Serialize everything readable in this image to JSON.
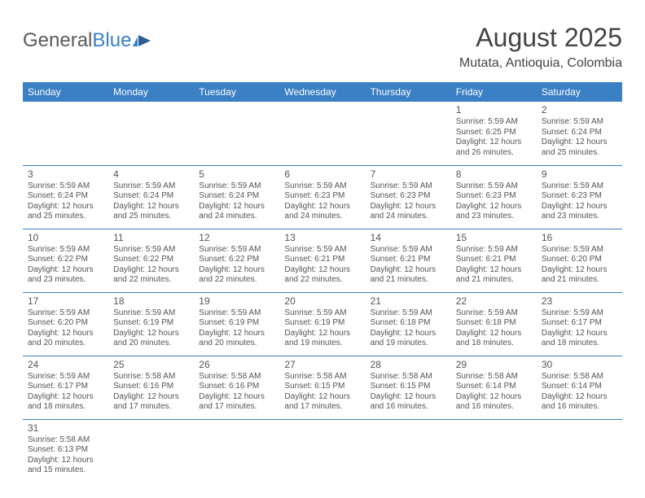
{
  "logo": {
    "general": "General",
    "blue": "Blue"
  },
  "title": "August 2025",
  "subtitle": "Mutata, Antioquia, Colombia",
  "colors": {
    "header_bg": "#3b7fc4",
    "header_text": "#ffffff",
    "cell_border": "#3b7fc4",
    "text": "#555555",
    "title_color": "#444444",
    "background": "#ffffff"
  },
  "typography": {
    "title_fontsize": 32,
    "subtitle_fontsize": 16,
    "header_fontsize": 12,
    "daynum_fontsize": 12,
    "body_fontsize": 10
  },
  "days": [
    "Sunday",
    "Monday",
    "Tuesday",
    "Wednesday",
    "Thursday",
    "Friday",
    "Saturday"
  ],
  "weeks": [
    [
      null,
      null,
      null,
      null,
      null,
      {
        "n": "1",
        "sr": "Sunrise: 5:59 AM",
        "ss": "Sunset: 6:25 PM",
        "d1": "Daylight: 12 hours",
        "d2": "and 26 minutes."
      },
      {
        "n": "2",
        "sr": "Sunrise: 5:59 AM",
        "ss": "Sunset: 6:24 PM",
        "d1": "Daylight: 12 hours",
        "d2": "and 25 minutes."
      }
    ],
    [
      {
        "n": "3",
        "sr": "Sunrise: 5:59 AM",
        "ss": "Sunset: 6:24 PM",
        "d1": "Daylight: 12 hours",
        "d2": "and 25 minutes."
      },
      {
        "n": "4",
        "sr": "Sunrise: 5:59 AM",
        "ss": "Sunset: 6:24 PM",
        "d1": "Daylight: 12 hours",
        "d2": "and 25 minutes."
      },
      {
        "n": "5",
        "sr": "Sunrise: 5:59 AM",
        "ss": "Sunset: 6:24 PM",
        "d1": "Daylight: 12 hours",
        "d2": "and 24 minutes."
      },
      {
        "n": "6",
        "sr": "Sunrise: 5:59 AM",
        "ss": "Sunset: 6:23 PM",
        "d1": "Daylight: 12 hours",
        "d2": "and 24 minutes."
      },
      {
        "n": "7",
        "sr": "Sunrise: 5:59 AM",
        "ss": "Sunset: 6:23 PM",
        "d1": "Daylight: 12 hours",
        "d2": "and 24 minutes."
      },
      {
        "n": "8",
        "sr": "Sunrise: 5:59 AM",
        "ss": "Sunset: 6:23 PM",
        "d1": "Daylight: 12 hours",
        "d2": "and 23 minutes."
      },
      {
        "n": "9",
        "sr": "Sunrise: 5:59 AM",
        "ss": "Sunset: 6:23 PM",
        "d1": "Daylight: 12 hours",
        "d2": "and 23 minutes."
      }
    ],
    [
      {
        "n": "10",
        "sr": "Sunrise: 5:59 AM",
        "ss": "Sunset: 6:22 PM",
        "d1": "Daylight: 12 hours",
        "d2": "and 23 minutes."
      },
      {
        "n": "11",
        "sr": "Sunrise: 5:59 AM",
        "ss": "Sunset: 6:22 PM",
        "d1": "Daylight: 12 hours",
        "d2": "and 22 minutes."
      },
      {
        "n": "12",
        "sr": "Sunrise: 5:59 AM",
        "ss": "Sunset: 6:22 PM",
        "d1": "Daylight: 12 hours",
        "d2": "and 22 minutes."
      },
      {
        "n": "13",
        "sr": "Sunrise: 5:59 AM",
        "ss": "Sunset: 6:21 PM",
        "d1": "Daylight: 12 hours",
        "d2": "and 22 minutes."
      },
      {
        "n": "14",
        "sr": "Sunrise: 5:59 AM",
        "ss": "Sunset: 6:21 PM",
        "d1": "Daylight: 12 hours",
        "d2": "and 21 minutes."
      },
      {
        "n": "15",
        "sr": "Sunrise: 5:59 AM",
        "ss": "Sunset: 6:21 PM",
        "d1": "Daylight: 12 hours",
        "d2": "and 21 minutes."
      },
      {
        "n": "16",
        "sr": "Sunrise: 5:59 AM",
        "ss": "Sunset: 6:20 PM",
        "d1": "Daylight: 12 hours",
        "d2": "and 21 minutes."
      }
    ],
    [
      {
        "n": "17",
        "sr": "Sunrise: 5:59 AM",
        "ss": "Sunset: 6:20 PM",
        "d1": "Daylight: 12 hours",
        "d2": "and 20 minutes."
      },
      {
        "n": "18",
        "sr": "Sunrise: 5:59 AM",
        "ss": "Sunset: 6:19 PM",
        "d1": "Daylight: 12 hours",
        "d2": "and 20 minutes."
      },
      {
        "n": "19",
        "sr": "Sunrise: 5:59 AM",
        "ss": "Sunset: 6:19 PM",
        "d1": "Daylight: 12 hours",
        "d2": "and 20 minutes."
      },
      {
        "n": "20",
        "sr": "Sunrise: 5:59 AM",
        "ss": "Sunset: 6:19 PM",
        "d1": "Daylight: 12 hours",
        "d2": "and 19 minutes."
      },
      {
        "n": "21",
        "sr": "Sunrise: 5:59 AM",
        "ss": "Sunset: 6:18 PM",
        "d1": "Daylight: 12 hours",
        "d2": "and 19 minutes."
      },
      {
        "n": "22",
        "sr": "Sunrise: 5:59 AM",
        "ss": "Sunset: 6:18 PM",
        "d1": "Daylight: 12 hours",
        "d2": "and 18 minutes."
      },
      {
        "n": "23",
        "sr": "Sunrise: 5:59 AM",
        "ss": "Sunset: 6:17 PM",
        "d1": "Daylight: 12 hours",
        "d2": "and 18 minutes."
      }
    ],
    [
      {
        "n": "24",
        "sr": "Sunrise: 5:59 AM",
        "ss": "Sunset: 6:17 PM",
        "d1": "Daylight: 12 hours",
        "d2": "and 18 minutes."
      },
      {
        "n": "25",
        "sr": "Sunrise: 5:58 AM",
        "ss": "Sunset: 6:16 PM",
        "d1": "Daylight: 12 hours",
        "d2": "and 17 minutes."
      },
      {
        "n": "26",
        "sr": "Sunrise: 5:58 AM",
        "ss": "Sunset: 6:16 PM",
        "d1": "Daylight: 12 hours",
        "d2": "and 17 minutes."
      },
      {
        "n": "27",
        "sr": "Sunrise: 5:58 AM",
        "ss": "Sunset: 6:15 PM",
        "d1": "Daylight: 12 hours",
        "d2": "and 17 minutes."
      },
      {
        "n": "28",
        "sr": "Sunrise: 5:58 AM",
        "ss": "Sunset: 6:15 PM",
        "d1": "Daylight: 12 hours",
        "d2": "and 16 minutes."
      },
      {
        "n": "29",
        "sr": "Sunrise: 5:58 AM",
        "ss": "Sunset: 6:14 PM",
        "d1": "Daylight: 12 hours",
        "d2": "and 16 minutes."
      },
      {
        "n": "30",
        "sr": "Sunrise: 5:58 AM",
        "ss": "Sunset: 6:14 PM",
        "d1": "Daylight: 12 hours",
        "d2": "and 16 minutes."
      }
    ],
    [
      {
        "n": "31",
        "sr": "Sunrise: 5:58 AM",
        "ss": "Sunset: 6:13 PM",
        "d1": "Daylight: 12 hours",
        "d2": "and 15 minutes."
      },
      null,
      null,
      null,
      null,
      null,
      null
    ]
  ]
}
